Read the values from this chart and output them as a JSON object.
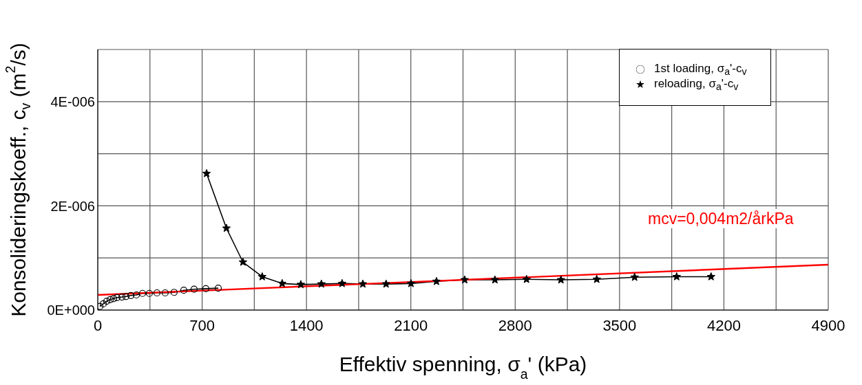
{
  "chart_data": {
    "type": "line",
    "xlabel": "Effektiv spenning, σ$_{a}$'  (kPa)",
    "ylabel": "Konsolideringskoeff., c$_{v}$  (m$^{2}$/s)",
    "xlim": [
      0,
      4900
    ],
    "xticks": [
      0,
      {
        "value": 350,
        "label": null
      },
      700,
      {
        "value": 1050,
        "label": null
      },
      1400,
      {
        "value": 1750,
        "label": null
      },
      2100,
      {
        "value": 2450,
        "label": null
      },
      2800,
      {
        "value": 3150,
        "label": null
      },
      3500,
      {
        "value": 3850,
        "label": null
      },
      4200,
      {
        "value": 4550,
        "label": null
      },
      4900
    ],
    "ylim": [
      0,
      5e-06
    ],
    "yticks": [
      {
        "value": 0,
        "label": "0E+000"
      },
      {
        "value": 1e-06,
        "label": null
      },
      {
        "value": 2e-06,
        "label": "2E-006"
      },
      {
        "value": 3e-06,
        "label": null
      },
      {
        "value": 4e-06,
        "label": "4E-006"
      },
      {
        "value": 5e-06,
        "label": null
      }
    ],
    "grid": true,
    "legend": "top right",
    "annotations": [
      "mcv=0,004m2/årkPa"
    ],
    "series": [
      {
        "name": "1st loading, σ$_{a}$'-c$_{v}$",
        "color": "#000000",
        "marker": "circle",
        "x": [
          14,
          37,
          60,
          83,
          106,
          129,
          162,
          189,
          222,
          259,
          300,
          346,
          397,
          452,
          512,
          577,
          646,
          725,
          808
        ],
        "values": [
          7e-08,
          1.2e-07,
          1.7e-07,
          2e-07,
          2.2e-07,
          2.4e-07,
          2.5e-07,
          2.6e-07,
          2.8e-07,
          2.9e-07,
          3.2e-07,
          3.2e-07,
          3.3e-07,
          3.3e-07,
          3.4e-07,
          3.8e-07,
          4e-07,
          4.1e-07,
          4.2e-07
        ]
      },
      {
        "name": "reloading, σ$_{a}$'-c$_{v}$",
        "color": "#000000",
        "marker": "star",
        "x": [
          730,
          863,
          974,
          1103,
          1237,
          1362,
          1500,
          1639,
          1778,
          1934,
          2101,
          2272,
          2461,
          2664,
          2876,
          3107,
          3347,
          3601,
          3883,
          4114
        ],
        "values": [
          2.62e-06,
          1.57e-06,
          9.2e-07,
          6.4e-07,
          5.1e-07,
          4.9e-07,
          5e-07,
          5.1e-07,
          5e-07,
          5e-07,
          5.1e-07,
          5.5e-07,
          5.8e-07,
          5.8e-07,
          5.9e-07,
          5.8e-07,
          5.9e-07,
          6.3e-07,
          6.4e-07,
          6.4e-07
        ]
      },
      {
        "type": "line",
        "color": "#ff0000",
        "marker": "none",
        "x": [
          0,
          4900
        ],
        "values": [
          2.9e-07,
          8.7e-07
        ]
      }
    ]
  }
}
